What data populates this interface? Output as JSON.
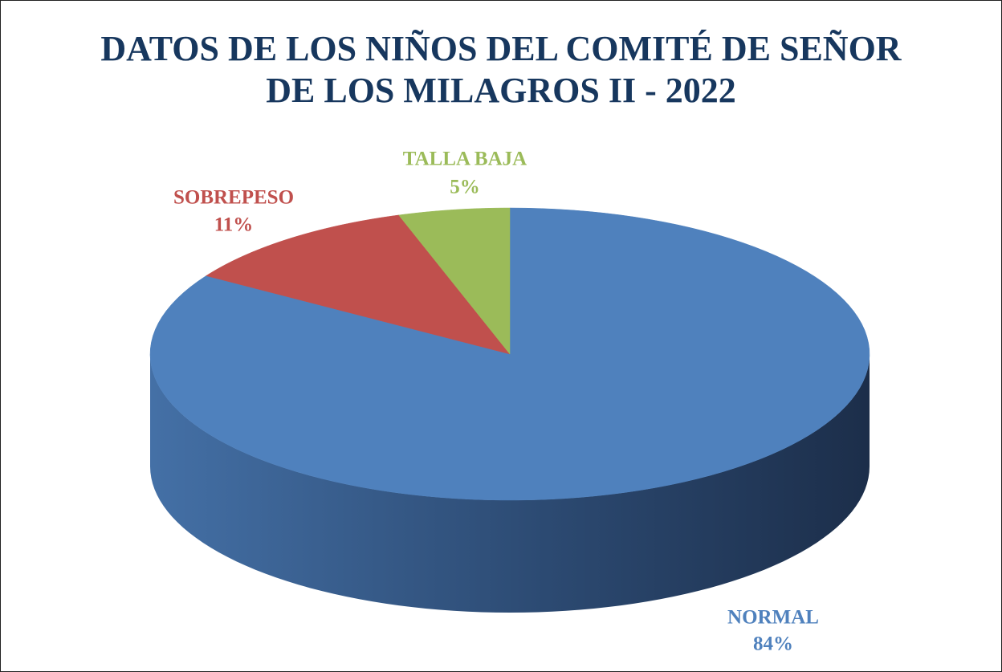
{
  "chart_data": {
    "type": "pie",
    "title": "DATOS DE LOS NIÑOS DEL COMITÉ DE SEÑOR DE LOS MILAGROS II - 2022",
    "categories": [
      "NORMAL",
      "SOBREPESO",
      "TALLA BAJA"
    ],
    "values": [
      84,
      11,
      5
    ],
    "value_labels": [
      "84%",
      "11%",
      "5%"
    ],
    "colors": [
      "#4f81bd",
      "#c0504d",
      "#9bbb59"
    ]
  }
}
